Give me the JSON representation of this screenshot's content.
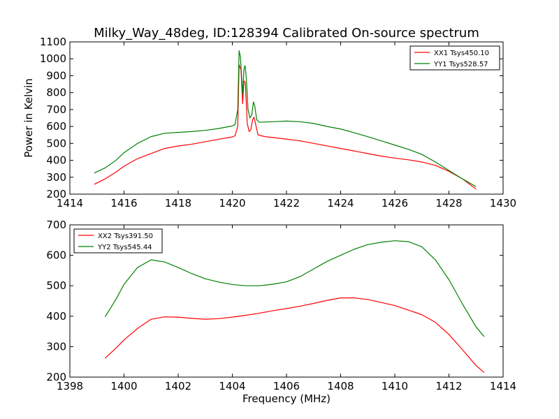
{
  "chart_data": [
    {
      "type": "line",
      "title": "Milky_Way_48deg, ID:128394 Calibrated On-source spectrum",
      "xlabel": "",
      "ylabel": "Power in Kelvin",
      "xlim": [
        1414,
        1430
      ],
      "ylim": [
        200,
        1100
      ],
      "xticks": [
        "1414",
        "1416",
        "1418",
        "1420",
        "1422",
        "1424",
        "1426",
        "1428",
        "1430"
      ],
      "yticks": [
        "200",
        "300",
        "400",
        "500",
        "600",
        "700",
        "800",
        "900",
        "1000",
        "1100"
      ],
      "legend_position": "top-right",
      "series": [
        {
          "name": "XX1 Tsys450.10",
          "color": "#ff0000",
          "points": [
            [
              1414.9,
              258
            ],
            [
              1415.3,
              290
            ],
            [
              1415.7,
              330
            ],
            [
              1416.0,
              365
            ],
            [
              1416.5,
              410
            ],
            [
              1417.0,
              440
            ],
            [
              1417.5,
              470
            ],
            [
              1418.0,
              485
            ],
            [
              1418.5,
              495
            ],
            [
              1419.0,
              510
            ],
            [
              1419.5,
              525
            ],
            [
              1420.0,
              538
            ],
            [
              1420.1,
              545
            ],
            [
              1420.2,
              600
            ],
            [
              1420.25,
              965
            ],
            [
              1420.32,
              935
            ],
            [
              1420.38,
              735
            ],
            [
              1420.43,
              870
            ],
            [
              1420.48,
              860
            ],
            [
              1420.55,
              620
            ],
            [
              1420.62,
              570
            ],
            [
              1420.68,
              580
            ],
            [
              1420.75,
              640
            ],
            [
              1420.8,
              655
            ],
            [
              1420.85,
              620
            ],
            [
              1420.95,
              550
            ],
            [
              1421.2,
              540
            ],
            [
              1421.5,
              535
            ],
            [
              1422.0,
              525
            ],
            [
              1422.5,
              515
            ],
            [
              1423.0,
              500
            ],
            [
              1423.5,
              485
            ],
            [
              1424.0,
              470
            ],
            [
              1424.5,
              455
            ],
            [
              1425.0,
              440
            ],
            [
              1425.5,
              425
            ],
            [
              1426.0,
              413
            ],
            [
              1426.5,
              403
            ],
            [
              1427.0,
              390
            ],
            [
              1427.5,
              370
            ],
            [
              1428.0,
              335
            ],
            [
              1428.5,
              290
            ],
            [
              1429.0,
              230
            ]
          ]
        },
        {
          "name": "YY1 Tsys528.57",
          "color": "#008000",
          "points": [
            [
              1414.9,
              325
            ],
            [
              1415.3,
              355
            ],
            [
              1415.7,
              400
            ],
            [
              1416.0,
              445
            ],
            [
              1416.5,
              500
            ],
            [
              1417.0,
              540
            ],
            [
              1417.5,
              560
            ],
            [
              1418.0,
              565
            ],
            [
              1418.5,
              570
            ],
            [
              1419.0,
              577
            ],
            [
              1419.5,
              588
            ],
            [
              1420.0,
              603
            ],
            [
              1420.1,
              612
            ],
            [
              1420.2,
              700
            ],
            [
              1420.25,
              1048
            ],
            [
              1420.3,
              1010
            ],
            [
              1420.38,
              790
            ],
            [
              1420.43,
              940
            ],
            [
              1420.47,
              960
            ],
            [
              1420.52,
              880
            ],
            [
              1420.58,
              700
            ],
            [
              1420.65,
              650
            ],
            [
              1420.72,
              670
            ],
            [
              1420.78,
              745
            ],
            [
              1420.83,
              720
            ],
            [
              1420.9,
              640
            ],
            [
              1421.0,
              625
            ],
            [
              1421.5,
              628
            ],
            [
              1422.0,
              632
            ],
            [
              1422.5,
              628
            ],
            [
              1423.0,
              618
            ],
            [
              1423.5,
              600
            ],
            [
              1424.0,
              585
            ],
            [
              1424.5,
              563
            ],
            [
              1425.0,
              540
            ],
            [
              1425.5,
              515
            ],
            [
              1426.0,
              490
            ],
            [
              1426.5,
              465
            ],
            [
              1427.0,
              435
            ],
            [
              1427.5,
              390
            ],
            [
              1428.0,
              340
            ],
            [
              1428.5,
              290
            ],
            [
              1429.0,
              245
            ]
          ]
        }
      ]
    },
    {
      "type": "line",
      "title": "",
      "xlabel": "Frequency (MHz)",
      "ylabel": "",
      "xlim": [
        1398,
        1414
      ],
      "ylim": [
        200,
        700
      ],
      "xticks": [
        "1398",
        "1400",
        "1402",
        "1404",
        "1406",
        "1408",
        "1410",
        "1412",
        "1414"
      ],
      "yticks": [
        "200",
        "300",
        "400",
        "500",
        "600",
        "700"
      ],
      "legend_position": "top-left",
      "series": [
        {
          "name": "XX2 Tsys391.50",
          "color": "#ff0000",
          "points": [
            [
              1399.3,
              262
            ],
            [
              1399.7,
              295
            ],
            [
              1400.0,
              322
            ],
            [
              1400.5,
              360
            ],
            [
              1401.0,
              390
            ],
            [
              1401.5,
              398
            ],
            [
              1402.0,
              397
            ],
            [
              1402.5,
              393
            ],
            [
              1403.0,
              390
            ],
            [
              1403.5,
              392
            ],
            [
              1404.0,
              397
            ],
            [
              1404.5,
              403
            ],
            [
              1405.0,
              410
            ],
            [
              1405.5,
              418
            ],
            [
              1406.0,
              425
            ],
            [
              1406.5,
              433
            ],
            [
              1407.0,
              442
            ],
            [
              1407.5,
              452
            ],
            [
              1408.0,
              460
            ],
            [
              1408.5,
              460
            ],
            [
              1409.0,
              455
            ],
            [
              1409.5,
              445
            ],
            [
              1410.0,
              435
            ],
            [
              1410.5,
              420
            ],
            [
              1411.0,
              405
            ],
            [
              1411.5,
              380
            ],
            [
              1412.0,
              340
            ],
            [
              1412.5,
              290
            ],
            [
              1413.0,
              238
            ],
            [
              1413.3,
              215
            ]
          ]
        },
        {
          "name": "YY2 Tsys545.44",
          "color": "#008000",
          "points": [
            [
              1399.3,
              398
            ],
            [
              1399.7,
              455
            ],
            [
              1400.0,
              505
            ],
            [
              1400.5,
              560
            ],
            [
              1401.0,
              585
            ],
            [
              1401.5,
              578
            ],
            [
              1402.0,
              560
            ],
            [
              1402.5,
              540
            ],
            [
              1403.0,
              523
            ],
            [
              1403.5,
              512
            ],
            [
              1404.0,
              504
            ],
            [
              1404.5,
              500
            ],
            [
              1405.0,
              500
            ],
            [
              1405.5,
              505
            ],
            [
              1406.0,
              513
            ],
            [
              1406.5,
              530
            ],
            [
              1407.0,
              555
            ],
            [
              1407.5,
              580
            ],
            [
              1408.0,
              600
            ],
            [
              1408.5,
              620
            ],
            [
              1409.0,
              635
            ],
            [
              1409.5,
              643
            ],
            [
              1410.0,
              648
            ],
            [
              1410.5,
              645
            ],
            [
              1411.0,
              628
            ],
            [
              1411.5,
              585
            ],
            [
              1412.0,
              520
            ],
            [
              1412.5,
              440
            ],
            [
              1413.0,
              365
            ],
            [
              1413.3,
              333
            ]
          ]
        }
      ]
    }
  ]
}
